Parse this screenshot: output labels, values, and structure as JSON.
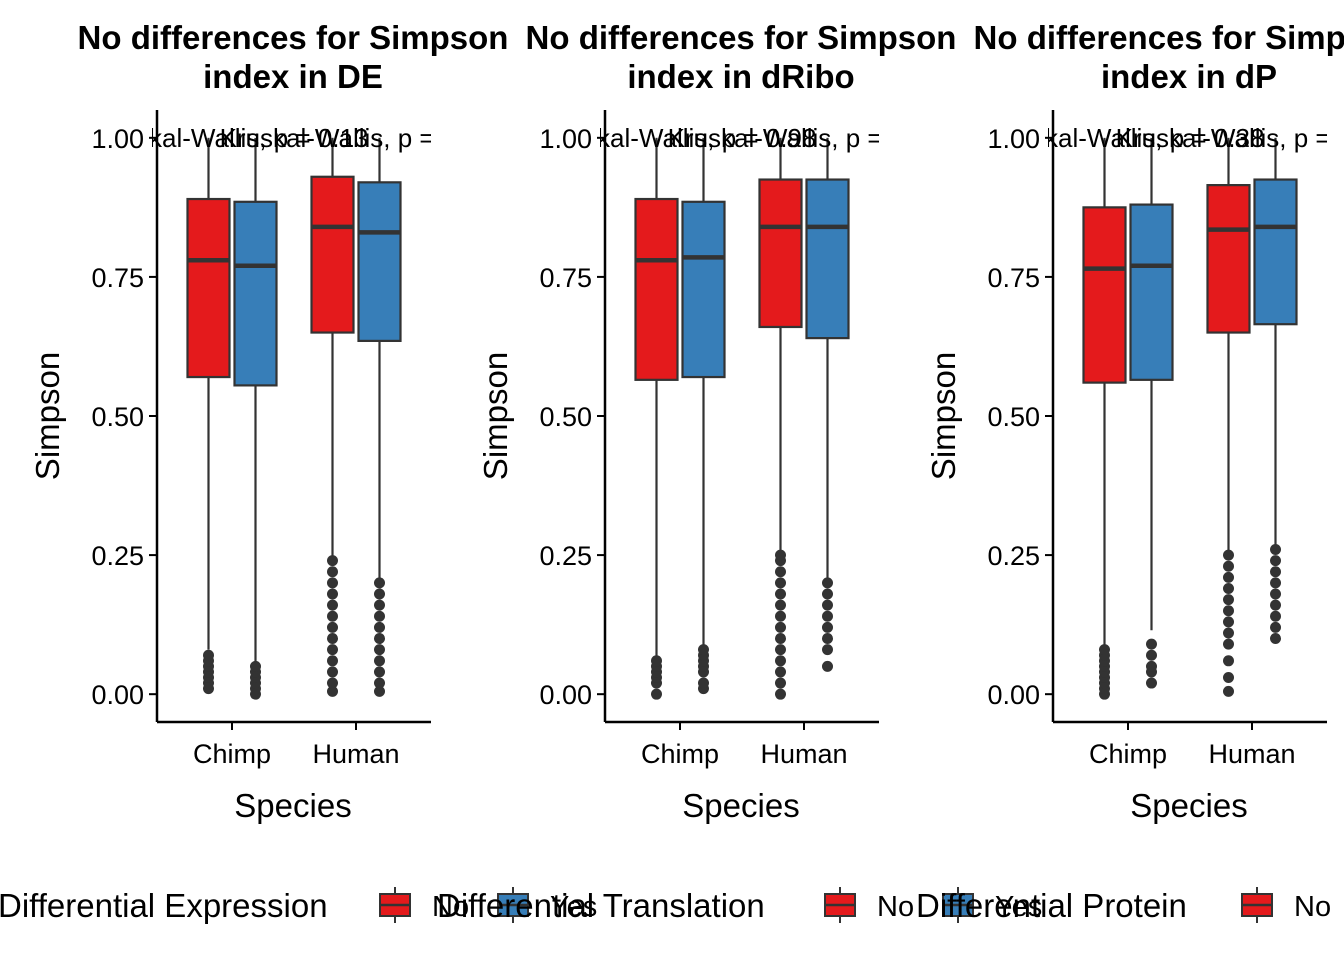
{
  "chart_data": [
    {
      "type": "boxplot",
      "title_lines": [
        "No differences for Simpson",
        "index in DE"
      ],
      "xlabel": "Species",
      "ylabel": "Simpson",
      "categories": [
        "Chimp",
        "Human"
      ],
      "yticks": [
        "0.00",
        "0.25",
        "0.50",
        "0.75",
        "1.00"
      ],
      "ylim": [
        -0.05,
        1.05
      ],
      "annotations": [
        "Kruskal-Wallis, p = 0.13",
        "Kruskal-Wallis, p = 0.13"
      ],
      "legend_title": "Differential Expression",
      "series": [
        {
          "name": "No",
          "color": "#E41A1C",
          "boxes": [
            {
              "category": "Chimp",
              "q1": 0.57,
              "median": 0.78,
              "q3": 0.89,
              "whisker_low": 0.08,
              "whisker_high": 1.0,
              "outliers": [
                0.01,
                0.02,
                0.03,
                0.04,
                0.05,
                0.06,
                0.07
              ]
            },
            {
              "category": "Human",
              "q1": 0.65,
              "median": 0.84,
              "q3": 0.93,
              "whisker_low": 0.24,
              "whisker_high": 1.0,
              "outliers": [
                0.005,
                0.02,
                0.04,
                0.06,
                0.08,
                0.1,
                0.12,
                0.14,
                0.16,
                0.18,
                0.2,
                0.22,
                0.24
              ]
            }
          ]
        },
        {
          "name": "Yes",
          "color": "#377EB8",
          "boxes": [
            {
              "category": "Chimp",
              "q1": 0.555,
              "median": 0.77,
              "q3": 0.885,
              "whisker_low": 0.05,
              "whisker_high": 1.0,
              "outliers": [
                0.0,
                0.01,
                0.02,
                0.03,
                0.04,
                0.05
              ]
            },
            {
              "category": "Human",
              "q1": 0.635,
              "median": 0.83,
              "q3": 0.92,
              "whisker_low": 0.2,
              "whisker_high": 1.0,
              "outliers": [
                0.005,
                0.02,
                0.04,
                0.06,
                0.08,
                0.1,
                0.12,
                0.14,
                0.16,
                0.18,
                0.2
              ]
            }
          ]
        }
      ]
    },
    {
      "type": "boxplot",
      "title_lines": [
        "No differences for Simpson",
        "index in dRibo"
      ],
      "xlabel": "Species",
      "ylabel": "Simpson",
      "categories": [
        "Chimp",
        "Human"
      ],
      "yticks": [
        "0.00",
        "0.25",
        "0.50",
        "0.75",
        "1.00"
      ],
      "ylim": [
        -0.05,
        1.05
      ],
      "annotations": [
        "Kruskal-Wallis, p = 0.98",
        "Kruskal-Wallis, p = 0.98"
      ],
      "legend_title": "Differential Translation",
      "series": [
        {
          "name": "No",
          "color": "#E41A1C",
          "boxes": [
            {
              "category": "Chimp",
              "q1": 0.565,
              "median": 0.78,
              "q3": 0.89,
              "whisker_low": 0.065,
              "whisker_high": 1.0,
              "outliers": [
                0.0,
                0.02,
                0.03,
                0.04,
                0.05,
                0.06
              ]
            },
            {
              "category": "Human",
              "q1": 0.66,
              "median": 0.84,
              "q3": 0.925,
              "whisker_low": 0.255,
              "whisker_high": 1.0,
              "outliers": [
                0.0,
                0.02,
                0.04,
                0.06,
                0.08,
                0.1,
                0.12,
                0.14,
                0.16,
                0.18,
                0.2,
                0.22,
                0.24,
                0.25
              ]
            }
          ]
        },
        {
          "name": "Yes",
          "color": "#377EB8",
          "boxes": [
            {
              "category": "Chimp",
              "q1": 0.57,
              "median": 0.785,
              "q3": 0.885,
              "whisker_low": 0.08,
              "whisker_high": 1.0,
              "outliers": [
                0.01,
                0.02,
                0.04,
                0.05,
                0.06,
                0.07,
                0.08
              ]
            },
            {
              "category": "Human",
              "q1": 0.64,
              "median": 0.84,
              "q3": 0.925,
              "whisker_low": 0.205,
              "whisker_high": 1.0,
              "outliers": [
                0.05,
                0.08,
                0.1,
                0.12,
                0.14,
                0.16,
                0.18,
                0.2
              ]
            }
          ]
        }
      ]
    },
    {
      "type": "boxplot",
      "title_lines": [
        "No differences for Simpson",
        "index in dP"
      ],
      "xlabel": "Species",
      "ylabel": "Simpson",
      "categories": [
        "Chimp",
        "Human"
      ],
      "yticks": [
        "0.00",
        "0.25",
        "0.50",
        "0.75",
        "1.00"
      ],
      "ylim": [
        -0.05,
        1.05
      ],
      "annotations": [
        "Kruskal-Wallis, p = 0.38",
        "Kruskal-Wallis, p = 0.38"
      ],
      "legend_title": "Differential Protein",
      "series": [
        {
          "name": "No",
          "color": "#E41A1C",
          "boxes": [
            {
              "category": "Chimp",
              "q1": 0.56,
              "median": 0.765,
              "q3": 0.875,
              "whisker_low": 0.08,
              "whisker_high": 1.0,
              "outliers": [
                0.0,
                0.01,
                0.02,
                0.03,
                0.04,
                0.05,
                0.06,
                0.07,
                0.08
              ]
            },
            {
              "category": "Human",
              "q1": 0.65,
              "median": 0.835,
              "q3": 0.915,
              "whisker_low": 0.25,
              "whisker_high": 1.0,
              "outliers": [
                0.005,
                0.03,
                0.06,
                0.09,
                0.11,
                0.13,
                0.15,
                0.17,
                0.19,
                0.21,
                0.23,
                0.25
              ]
            }
          ]
        },
        {
          "name": "Yes",
          "color": "#377EB8",
          "boxes": [
            {
              "category": "Chimp",
              "q1": 0.565,
              "median": 0.77,
              "q3": 0.88,
              "whisker_low": 0.115,
              "whisker_high": 1.0,
              "outliers": [
                0.02,
                0.04,
                0.05,
                0.07,
                0.09
              ]
            },
            {
              "category": "Human",
              "q1": 0.665,
              "median": 0.84,
              "q3": 0.925,
              "whisker_low": 0.265,
              "whisker_high": 1.0,
              "outliers": [
                0.1,
                0.12,
                0.14,
                0.16,
                0.18,
                0.2,
                0.22,
                0.24,
                0.26
              ]
            }
          ]
        }
      ]
    }
  ]
}
